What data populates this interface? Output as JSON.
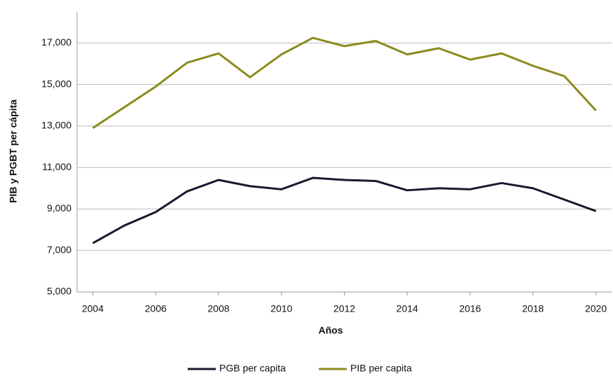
{
  "chart_data": {
    "type": "line",
    "y_label": "PIB y PGBT per cápita",
    "x_label": "Años",
    "x": [
      2004,
      2005,
      2006,
      2007,
      2008,
      2009,
      2010,
      2011,
      2012,
      2013,
      2014,
      2015,
      2016,
      2017,
      2018,
      2019,
      2020
    ],
    "series": [
      {
        "name": "PGB per capita",
        "color": "#151a2e",
        "values": [
          7350,
          8200,
          8850,
          9850,
          10400,
          10100,
          9950,
          10500,
          10400,
          10350,
          9900,
          10000,
          9950,
          10250,
          10000,
          9450,
          8900
        ]
      },
      {
        "name": "PIB per capita",
        "color": "#8c8a1c",
        "values": [
          12900,
          13900,
          14900,
          16050,
          16500,
          15350,
          16450,
          17250,
          16850,
          17100,
          16450,
          16750,
          16200,
          16500,
          15900,
          15400,
          13750
        ]
      }
    ],
    "xlim": [
      2003.5,
      2020.5
    ],
    "xticks": [
      2004,
      2006,
      2008,
      2010,
      2012,
      2014,
      2016,
      2018,
      2020
    ],
    "ylim": [
      5000,
      18500
    ],
    "yticks": [
      {
        "value": 5000,
        "label": "5,000"
      },
      {
        "value": 7000,
        "label": "7,000"
      },
      {
        "value": 9000,
        "label": "9,000"
      },
      {
        "value": 11000,
        "label": "11,000"
      },
      {
        "value": 13000,
        "label": "13,000"
      },
      {
        "value": 15000,
        "label": "15,000"
      },
      {
        "value": 17000,
        "label": "17,000"
      }
    ],
    "grid": true,
    "legend": "bottom"
  }
}
